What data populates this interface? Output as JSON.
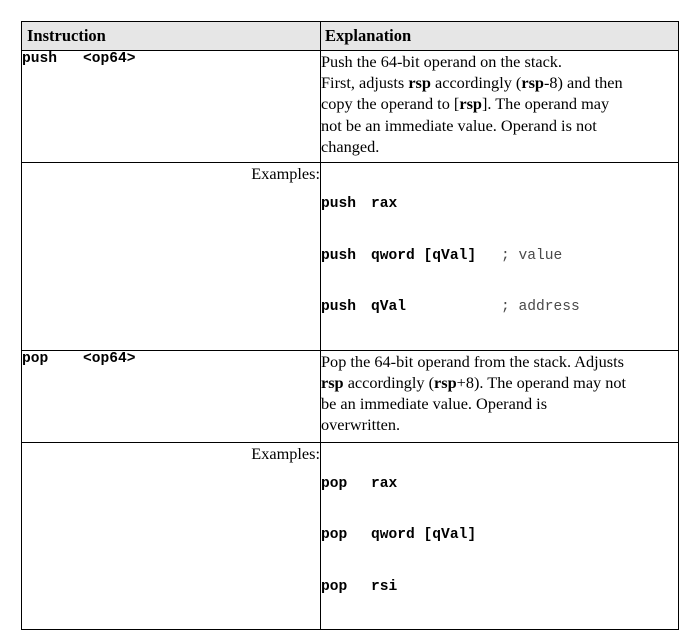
{
  "header": {
    "instruction": "Instruction",
    "explanation": "Explanation"
  },
  "push": {
    "mnemonic": "push",
    "operand": "<op64>",
    "desc": {
      "l1": "Push the 64-bit operand on the stack.",
      "l2_a": "First, adjusts ",
      "l2_reg": "rsp",
      "l2_b": " accordingly (",
      "l2_reg2": "rsp",
      "l2_c": "-8) and then",
      "l3_a": "copy the operand to [",
      "l3_reg": "rsp",
      "l3_b": "].  The operand may",
      "l4": "not be an immediate value.  Operand is not",
      "l5": "changed."
    },
    "examples_label": "Examples:",
    "examples": [
      {
        "mnemonic": "push",
        "arg": "rax",
        "comment": ""
      },
      {
        "mnemonic": "push",
        "arg": "qword [qVal]",
        "comment": "; value"
      },
      {
        "mnemonic": "push",
        "arg": "qVal",
        "comment": "; address"
      }
    ]
  },
  "pop": {
    "mnemonic": "pop",
    "operand": "<op64>",
    "desc": {
      "l1": "Pop the 64-bit operand from the stack.  Adjusts",
      "l2_reg": "rsp",
      "l2_a": " accordingly (",
      "l2_reg2": "rsp",
      "l2_b": "+8).  The operand may not",
      "l3": "be an immediate value.  Operand is",
      "l4": "overwritten."
    },
    "examples_label": "Examples:",
    "examples": [
      {
        "mnemonic": "pop",
        "arg": "rax",
        "comment": ""
      },
      {
        "mnemonic": "pop",
        "arg": "qword [qVal]",
        "comment": ""
      },
      {
        "mnemonic": "pop",
        "arg": "rsi",
        "comment": ""
      }
    ]
  }
}
